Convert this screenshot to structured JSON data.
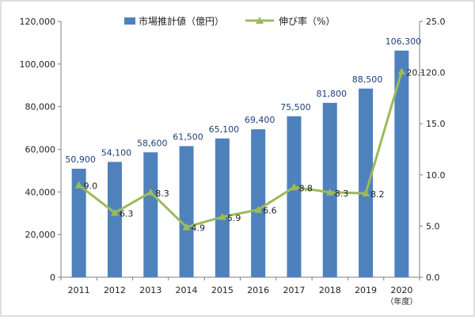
{
  "colors": {
    "bar": "#4f81bd",
    "line": "#9bbb59",
    "axis": "#7f7f7f",
    "grid": "#d9d9d9",
    "frame": "#bfbfbf"
  },
  "chart_data": {
    "type": "bar",
    "title": "",
    "x_unit": "（年度）",
    "categories": [
      "2011",
      "2012",
      "2013",
      "2014",
      "2015",
      "2016",
      "2017",
      "2018",
      "2019",
      "2020"
    ],
    "series": [
      {
        "name": "市場推計値（億円）",
        "type": "bar",
        "axis": "left",
        "values": [
          50900,
          54100,
          58600,
          61500,
          65100,
          69400,
          75500,
          81800,
          88500,
          106300
        ],
        "labels": [
          "50,900",
          "54,100",
          "58,600",
          "61,500",
          "65,100",
          "69,400",
          "75,500",
          "81,800",
          "88,500",
          "106,300"
        ]
      },
      {
        "name": "伸び率（%）",
        "type": "line",
        "axis": "right",
        "values": [
          9.0,
          6.3,
          8.3,
          4.9,
          5.9,
          6.6,
          8.8,
          8.3,
          8.2,
          20.1
        ],
        "labels": [
          "9.0",
          "6.3",
          "8.3",
          "4.9",
          "5.9",
          "6.6",
          "8.8",
          "8.3",
          "8.2",
          "20.1"
        ]
      }
    ],
    "y_left": {
      "min": 0,
      "max": 120000,
      "ticks": [
        0,
        20000,
        40000,
        60000,
        80000,
        100000,
        120000
      ],
      "tick_labels": [
        "0",
        "20,000",
        "40,000",
        "60,000",
        "80,000",
        "100,000",
        "120,000"
      ]
    },
    "y_right": {
      "min": 0,
      "max": 25,
      "ticks": [
        0,
        5,
        10,
        15,
        20,
        25
      ],
      "tick_labels": [
        "0.0",
        "5.0",
        "10.0",
        "15.0",
        "20.0",
        "25.0"
      ]
    },
    "legend_position": "top-center",
    "grid": false
  }
}
